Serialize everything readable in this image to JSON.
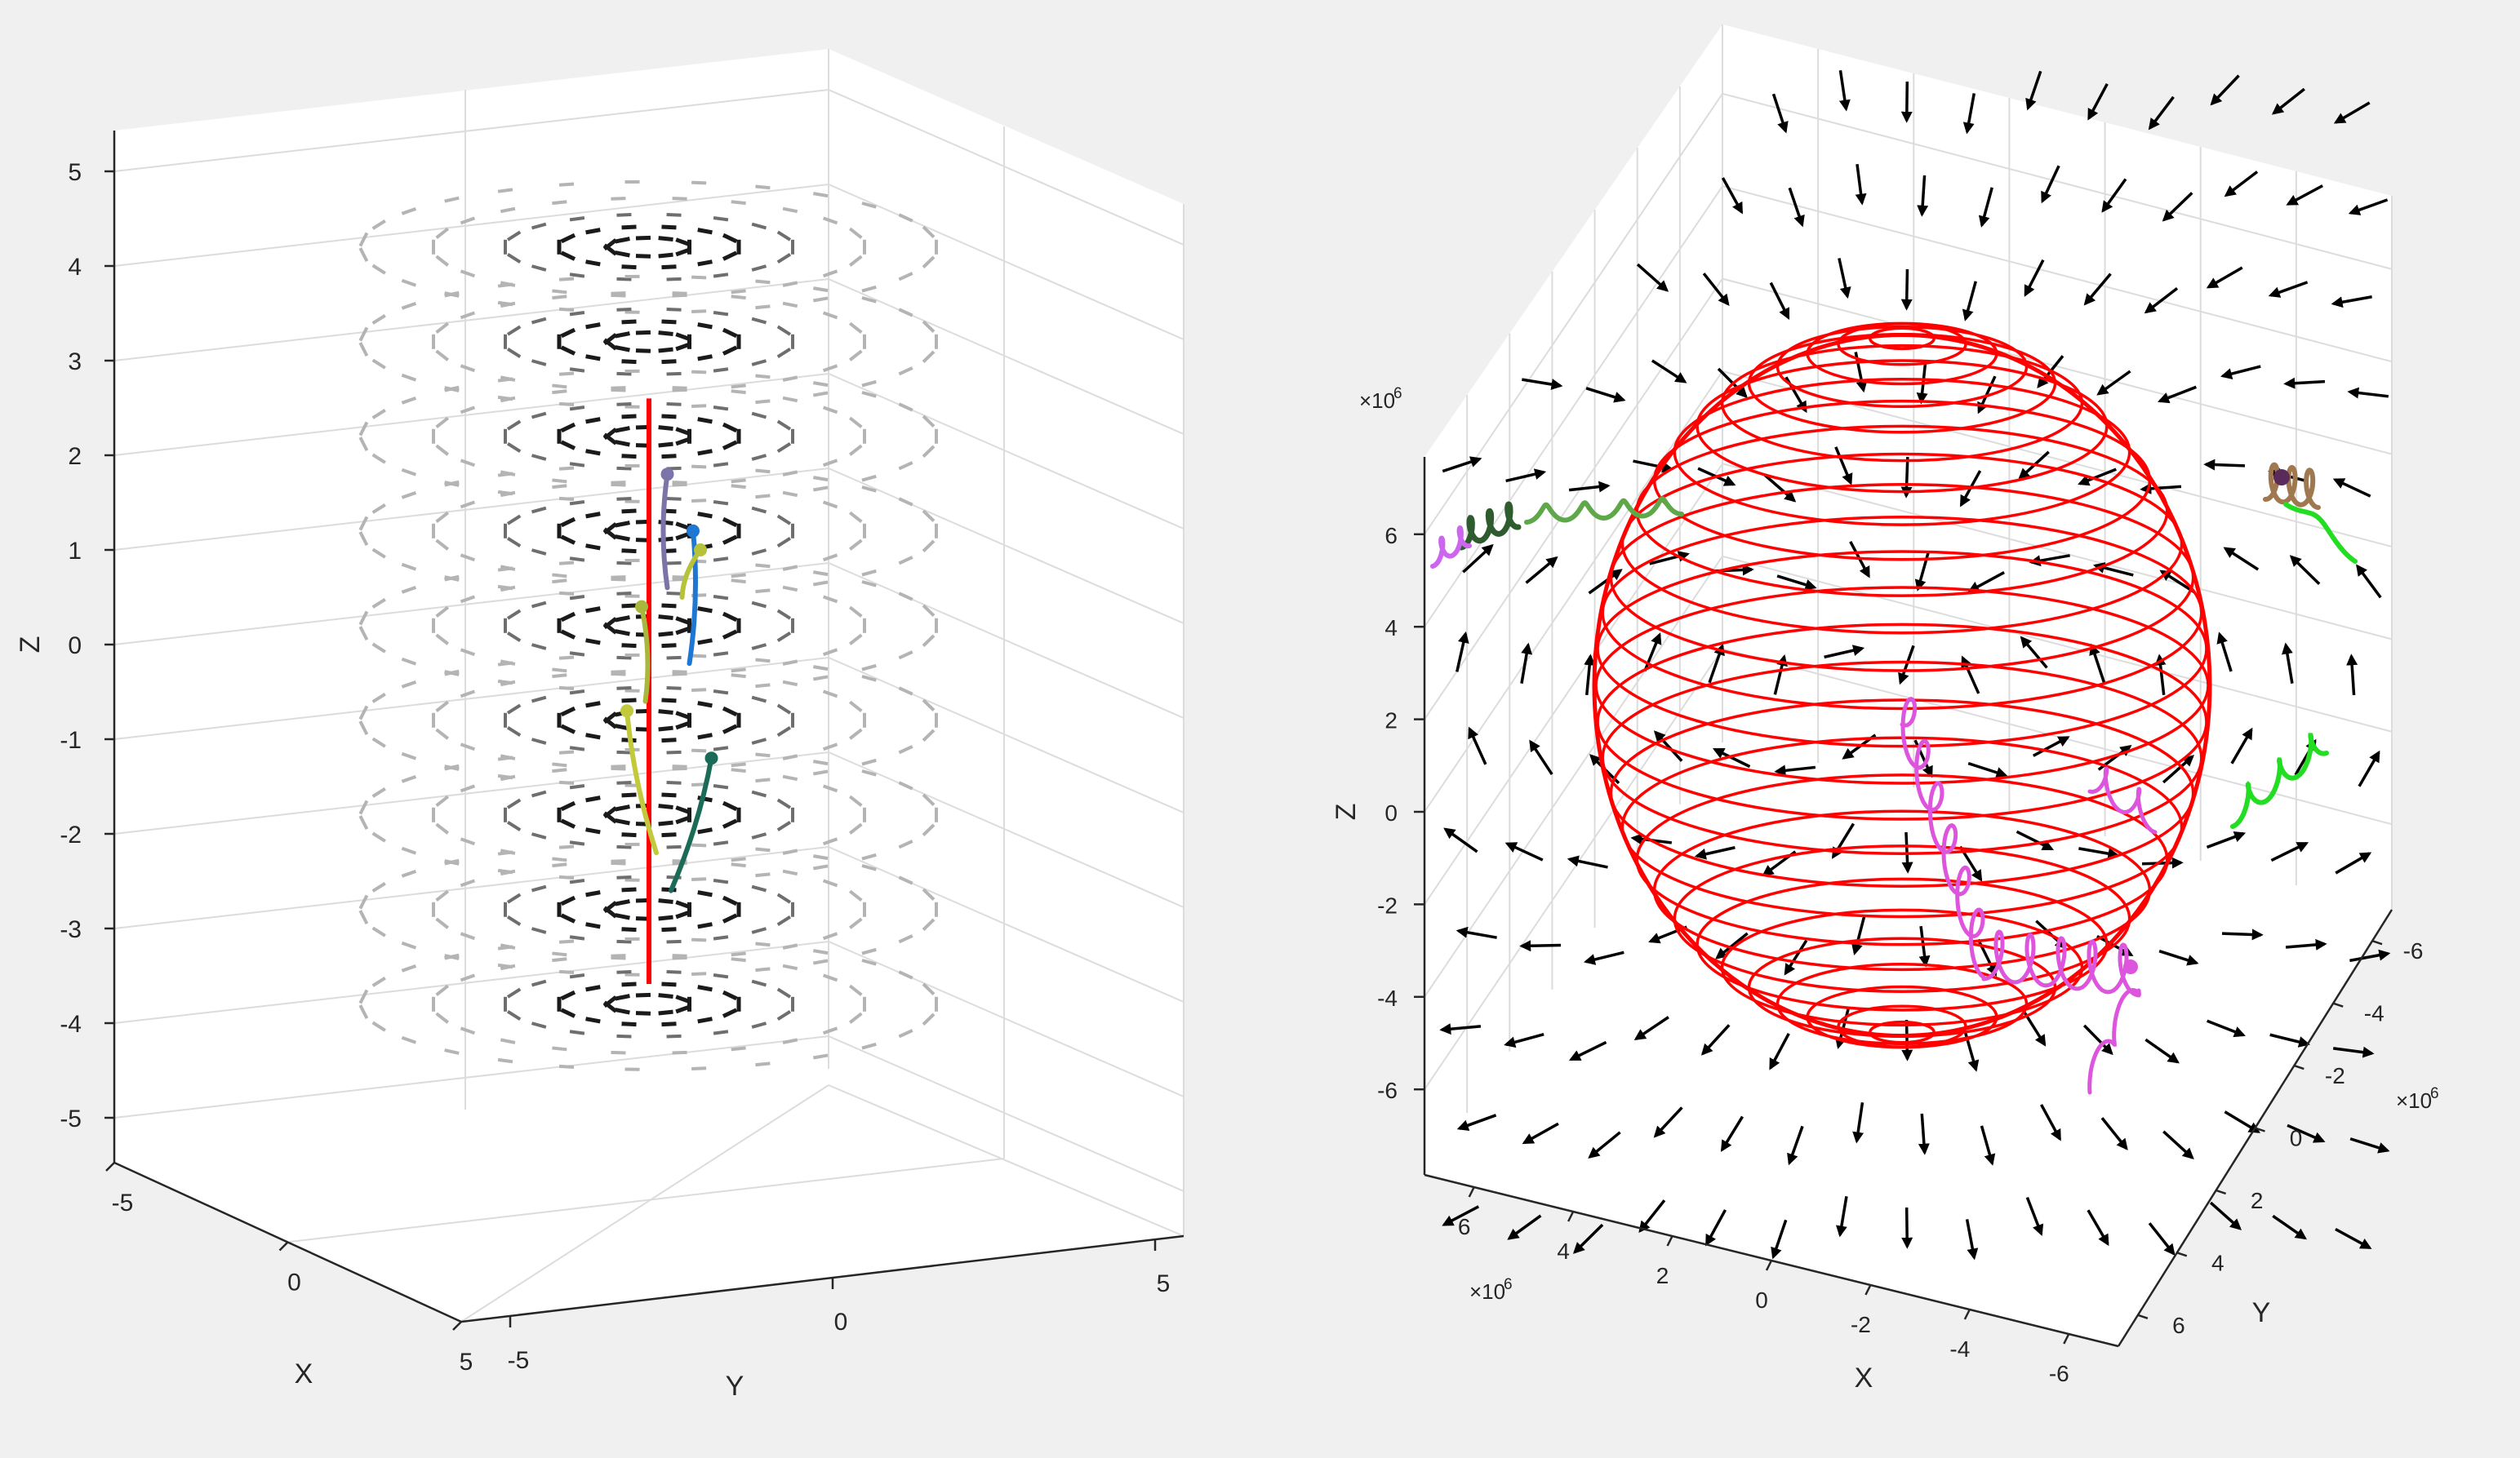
{
  "colors": {
    "background": "#f0f0f0",
    "pane": "#ffffff",
    "grid": "#dcdcdc",
    "axis": "#262626",
    "current": "#ff0000",
    "sphere": "#ff0000",
    "arrow": "#000000"
  },
  "chart_data": [
    {
      "type": "scatter",
      "plot": "3d",
      "description_kind": "magnetic field around a straight current wire with particle trajectories",
      "xlabel": "X",
      "ylabel": "Y",
      "zlabel": "Z",
      "xlim": [
        -5,
        5
      ],
      "ylim": [
        -5,
        5
      ],
      "zlim": [
        -5,
        5
      ],
      "grid": true,
      "x_ticks": [
        "-5",
        "0",
        "5"
      ],
      "y_ticks": [
        "-5",
        "0",
        "5"
      ],
      "z_ticks": [
        "5",
        "4",
        "3",
        "2",
        "1",
        "0",
        "-1",
        "-2",
        "-3",
        "-4",
        "-5"
      ],
      "z_tick_values": [
        5,
        4,
        3,
        2,
        1,
        0,
        -1,
        -2,
        -3,
        -4,
        -5
      ],
      "wire": {
        "x": 0,
        "y": 0,
        "z_range": [
          -3.5,
          2.6
        ]
      },
      "field": {
        "kind": "circulating",
        "z_layers": [
          2,
          1,
          0,
          -1,
          -2,
          -3
        ],
        "radii": [
          0.5,
          1.0,
          1.5
        ]
      },
      "trajectories": [
        {
          "color": "#7a74a8",
          "z": [
            1.8,
            0.6
          ],
          "y": [
            0.25,
            0.25
          ]
        },
        {
          "color": "#1f77d4",
          "z": [
            1.2,
            -0.2
          ],
          "y": [
            0.6,
            0.55
          ]
        },
        {
          "color": "#b5c23a",
          "z": [
            1.0,
            0.5
          ],
          "y": [
            0.7,
            0.45
          ]
        },
        {
          "color": "#a8b83c",
          "z": [
            0.4,
            -0.6
          ],
          "y": [
            -0.1,
            -0.05
          ]
        },
        {
          "color": "#c2c93a",
          "z": [
            -0.7,
            -2.2
          ],
          "y": [
            -0.3,
            0.1
          ]
        },
        {
          "color": "#1b6b58",
          "z": [
            -1.2,
            -2.6
          ],
          "y": [
            0.85,
            0.3
          ]
        }
      ]
    },
    {
      "type": "scatter",
      "plot": "3d",
      "description_kind": "magnetic dipole field around a sphere with particle trajectories",
      "xlabel": "X",
      "ylabel": "Y",
      "zlabel": "Z",
      "exponent_label": "×10",
      "exponent": "6",
      "xlim": [
        -7,
        7
      ],
      "ylim": [
        -7,
        7
      ],
      "zlim": [
        -7,
        7
      ],
      "grid": true,
      "x_ticks": [
        "6",
        "4",
        "2",
        "0",
        "-2",
        "-4",
        "-6"
      ],
      "x_tick_values": [
        6,
        4,
        2,
        0,
        -2,
        -4,
        -6
      ],
      "y_ticks": [
        "-6",
        "-4",
        "-2",
        "0",
        "2",
        "4",
        "6"
      ],
      "y_tick_values": [
        -6,
        -4,
        -2,
        0,
        2,
        4,
        6
      ],
      "z_ticks": [
        "6",
        "4",
        "2",
        "0",
        "-2",
        "-4",
        "-6"
      ],
      "z_tick_values": [
        6,
        4,
        2,
        0,
        -2,
        -4,
        -6
      ],
      "sphere": {
        "center": [
          0,
          0,
          0
        ],
        "radius": 4.5,
        "latitude_rings": 30
      },
      "field": {
        "kind": "dipole",
        "grid_step": 2
      },
      "trajectories": [
        {
          "color": "#2e5c2e"
        },
        {
          "color": "#cc66ee"
        },
        {
          "color": "#5fa84a"
        },
        {
          "color": "#a07850"
        },
        {
          "color": "#22dd22"
        },
        {
          "color": "#dd55dd"
        }
      ]
    }
  ]
}
